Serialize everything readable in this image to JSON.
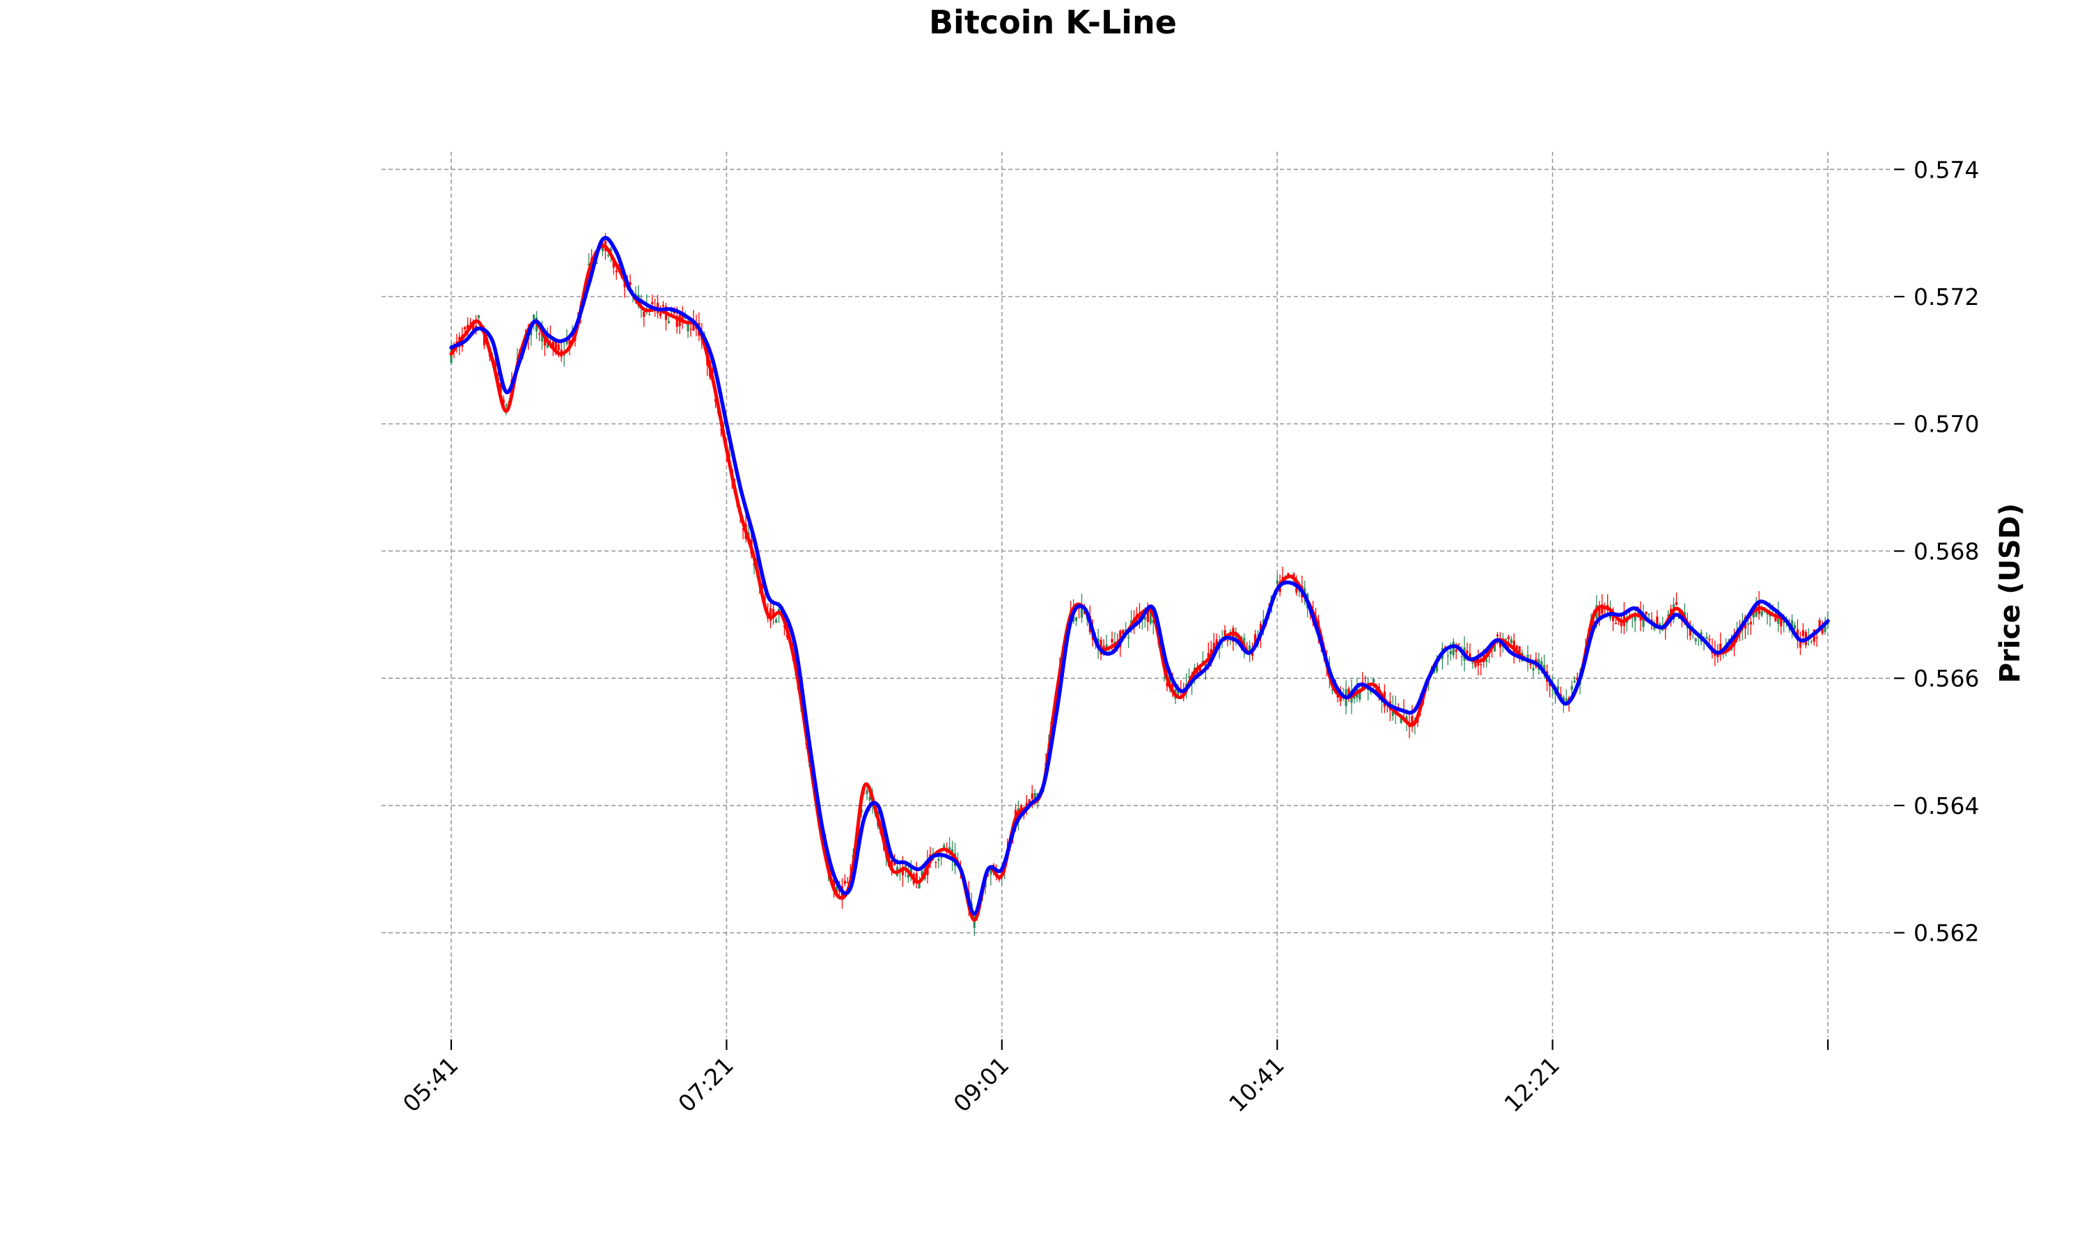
{
  "chart_data": {
    "type": "candlestick",
    "title": "Bitcoin K-Line",
    "xlabel": "",
    "ylabel": "Price (USD)",
    "ylim": [
      0.5603,
      0.5742
    ],
    "y_ticks": [
      0.562,
      0.564,
      0.566,
      0.568,
      0.57,
      0.572,
      0.574
    ],
    "y_tick_labels": [
      "0.562",
      "0.564",
      "0.566",
      "0.568",
      "0.570",
      "0.572",
      "0.574"
    ],
    "x_tick_labels": [
      "05:41",
      "07:21",
      "09:01",
      "10:41",
      "12:21",
      ""
    ],
    "x_range_minutes": [
      341,
      841
    ],
    "x_ticks_minutes": [
      341,
      441,
      541,
      641,
      741,
      841
    ],
    "y_axis_position": "right",
    "grid": true,
    "legend": "none",
    "colors": {
      "up": "#2e8b57",
      "down": "#ff0000",
      "ma_fast": "#ff0000",
      "ma_slow": "#0000ff",
      "grid": "#999999"
    },
    "series": [
      {
        "name": "",
        "style": "ma-fast",
        "x": [
          341,
          346,
          351,
          356,
          361,
          366,
          371,
          376,
          381,
          386,
          391,
          396,
          401,
          406,
          411,
          416,
          421,
          426,
          431,
          436,
          441,
          446,
          451,
          456,
          461,
          466,
          471,
          476,
          481,
          486,
          491,
          496,
          501,
          506,
          511,
          516,
          521,
          526,
          531,
          536,
          541,
          546,
          551,
          556,
          561,
          566,
          571,
          576,
          581,
          586,
          591,
          596,
          601,
          606,
          611,
          616,
          621,
          626,
          631,
          636,
          641,
          646,
          651,
          656,
          661,
          666,
          671,
          676,
          681,
          686,
          691,
          696,
          701,
          706,
          711,
          716,
          721,
          726,
          731,
          736,
          741,
          746,
          751,
          756,
          761,
          766,
          771,
          776,
          781,
          786,
          791,
          796,
          801,
          806,
          811,
          816,
          821,
          826,
          831,
          836,
          841
        ],
        "values": [
          0.5711,
          0.5714,
          0.5716,
          0.571,
          0.5702,
          0.5711,
          0.5716,
          0.5713,
          0.5711,
          0.5714,
          0.5724,
          0.5728,
          0.5725,
          0.5721,
          0.5718,
          0.5718,
          0.5717,
          0.5716,
          0.5715,
          0.5707,
          0.5696,
          0.5686,
          0.5679,
          0.567,
          0.567,
          0.5662,
          0.5648,
          0.5634,
          0.5626,
          0.5628,
          0.5643,
          0.5638,
          0.563,
          0.563,
          0.5628,
          0.5632,
          0.5633,
          0.563,
          0.5622,
          0.563,
          0.5629,
          0.5638,
          0.564,
          0.5643,
          0.5658,
          0.567,
          0.5671,
          0.5665,
          0.5665,
          0.5667,
          0.567,
          0.567,
          0.566,
          0.5657,
          0.5661,
          0.5663,
          0.5666,
          0.5667,
          0.5664,
          0.5668,
          0.5674,
          0.5676,
          0.5673,
          0.5668,
          0.5659,
          0.5657,
          0.5658,
          0.5659,
          0.5656,
          0.5654,
          0.5653,
          0.566,
          0.5664,
          0.5665,
          0.5663,
          0.5663,
          0.5666,
          0.5665,
          0.5663,
          0.5662,
          0.5659,
          0.5656,
          0.566,
          0.567,
          0.5671,
          0.5669,
          0.567,
          0.5669,
          0.5668,
          0.5671,
          0.5668,
          0.5666,
          0.5664,
          0.5665,
          0.5669,
          0.5671,
          0.567,
          0.5669,
          0.5666,
          0.5667,
          0.5669
        ]
      },
      {
        "name": "",
        "style": "ma-slow",
        "x": [
          341,
          346,
          351,
          356,
          361,
          366,
          371,
          376,
          381,
          386,
          391,
          396,
          401,
          406,
          411,
          416,
          421,
          426,
          431,
          436,
          441,
          446,
          451,
          456,
          461,
          466,
          471,
          476,
          481,
          486,
          491,
          496,
          501,
          506,
          511,
          516,
          521,
          526,
          531,
          536,
          541,
          546,
          551,
          556,
          561,
          566,
          571,
          576,
          581,
          586,
          591,
          596,
          601,
          606,
          611,
          616,
          621,
          626,
          631,
          636,
          641,
          646,
          651,
          656,
          661,
          666,
          671,
          676,
          681,
          686,
          691,
          696,
          701,
          706,
          711,
          716,
          721,
          726,
          731,
          736,
          741,
          746,
          751,
          756,
          761,
          766,
          771,
          776,
          781,
          786,
          791,
          796,
          801,
          806,
          811,
          816,
          821,
          826,
          831,
          836,
          841
        ],
        "values": [
          0.5712,
          0.5713,
          0.5715,
          0.5713,
          0.5705,
          0.571,
          0.5716,
          0.5714,
          0.5713,
          0.5715,
          0.5722,
          0.5729,
          0.5727,
          0.5721,
          0.5719,
          0.5718,
          0.5718,
          0.5717,
          0.5715,
          0.571,
          0.57,
          0.569,
          0.5682,
          0.5673,
          0.5671,
          0.5665,
          0.565,
          0.5636,
          0.5628,
          0.5627,
          0.5638,
          0.564,
          0.5632,
          0.5631,
          0.563,
          0.5632,
          0.5632,
          0.563,
          0.5623,
          0.563,
          0.563,
          0.5637,
          0.564,
          0.5643,
          0.5655,
          0.5669,
          0.5671,
          0.5665,
          0.5664,
          0.5667,
          0.5669,
          0.5671,
          0.5662,
          0.5658,
          0.566,
          0.5662,
          0.5666,
          0.5666,
          0.5664,
          0.5668,
          0.5674,
          0.5675,
          0.5673,
          0.5667,
          0.566,
          0.5657,
          0.5659,
          0.5658,
          0.5656,
          0.5655,
          0.5655,
          0.566,
          0.5664,
          0.5665,
          0.5663,
          0.5664,
          0.5666,
          0.5664,
          0.5663,
          0.5662,
          0.5659,
          0.5656,
          0.566,
          0.5668,
          0.567,
          0.567,
          0.5671,
          0.5669,
          0.5668,
          0.567,
          0.5668,
          0.5666,
          0.5664,
          0.5666,
          0.5669,
          0.5672,
          0.5671,
          0.5669,
          0.5666,
          0.5667,
          0.5669
        ]
      }
    ]
  }
}
